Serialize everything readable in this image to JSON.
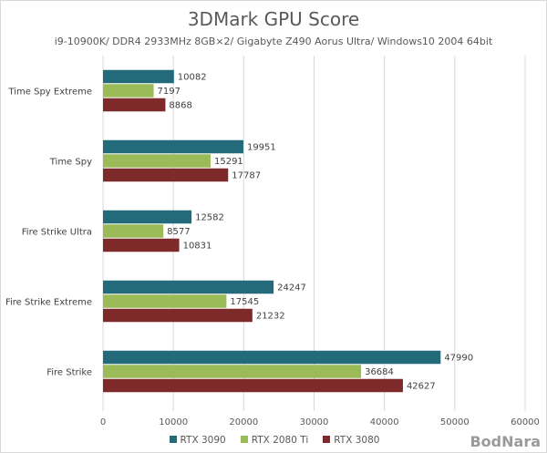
{
  "chart_data": {
    "type": "bar",
    "orientation": "horizontal",
    "title": "3DMark GPU Score",
    "subtitle": "i9-10900K/ DDR4 2933MHz 8GB×2/ Gigabyte Z490 Aorus Ultra/ Windows10 2004 64bit",
    "categories": [
      "Time Spy Extreme",
      "Time Spy",
      "Fire Strike Ultra",
      "Fire Strike Extreme",
      "Fire Strike"
    ],
    "series": [
      {
        "name": "RTX 3090",
        "color": "#236b7b",
        "values": [
          10082,
          19951,
          12582,
          24247,
          47990
        ]
      },
      {
        "name": "RTX 2080 Ti",
        "color": "#9bbb59",
        "values": [
          7197,
          15291,
          8577,
          17545,
          36684
        ]
      },
      {
        "name": "RTX 3080",
        "color": "#7f2a2a",
        "values": [
          8868,
          17787,
          10831,
          21232,
          42627
        ]
      }
    ],
    "xlim": [
      0,
      60000
    ],
    "xticks": [
      0,
      10000,
      20000,
      30000,
      40000,
      50000,
      60000
    ],
    "grid": true,
    "legend": "bottom"
  },
  "watermark": "BodNara"
}
